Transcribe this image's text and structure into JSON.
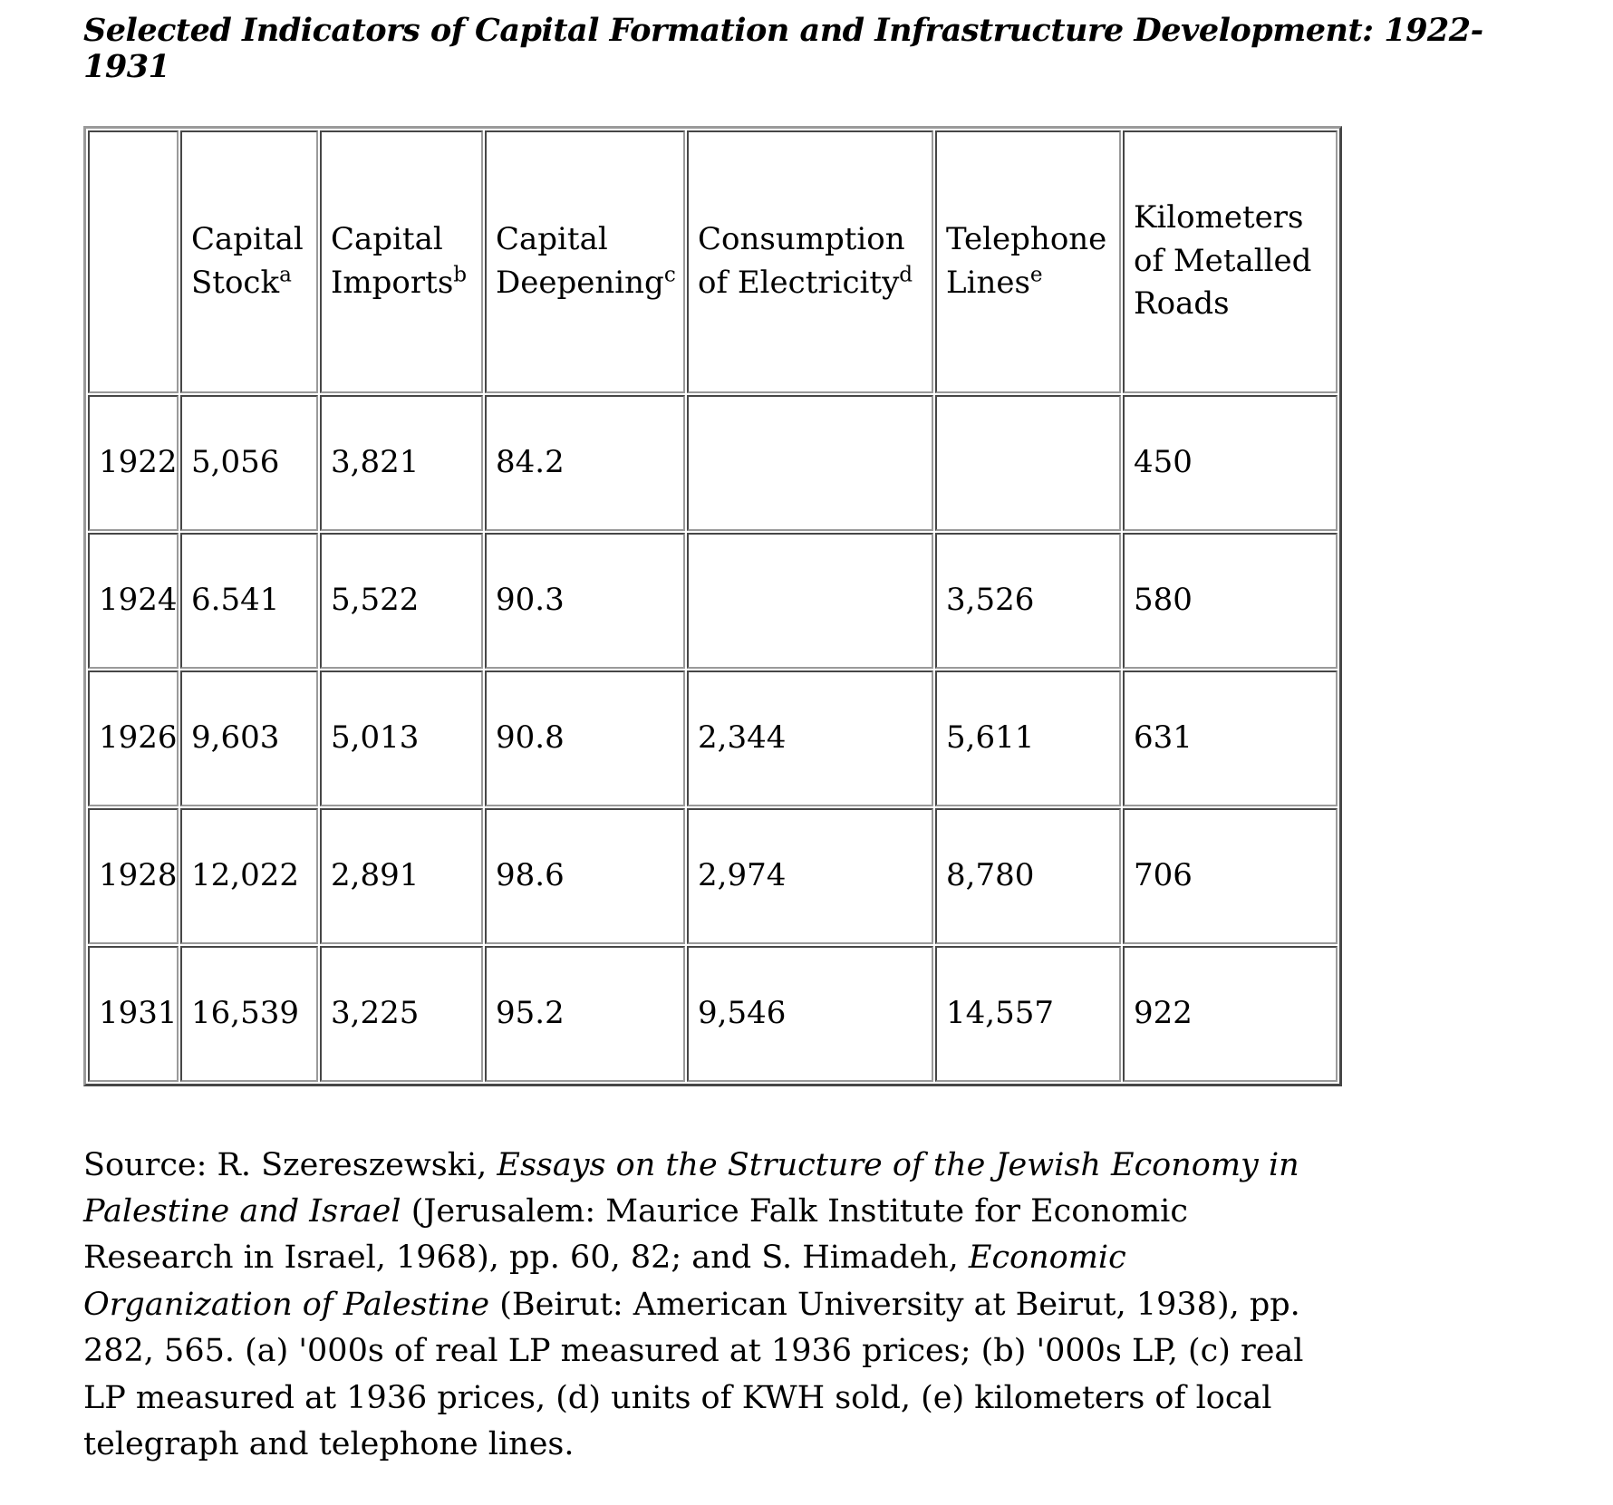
{
  "page": {
    "title": "Selected Indicators of Capital Formation and Infrastructure Development: 1922-1931"
  },
  "table": {
    "columns": [
      {
        "text": "",
        "sup": ""
      },
      {
        "text": "Capital Stock",
        "sup": "a"
      },
      {
        "text": "Capital Imports",
        "sup": "b"
      },
      {
        "text": "Capital Deepening",
        "sup": "c"
      },
      {
        "text": "Consumption of Electricity",
        "sup": "d"
      },
      {
        "text": "Telephone Lines",
        "sup": "e"
      },
      {
        "text": "Kilometers of Metalled Roads",
        "sup": ""
      }
    ],
    "rows": [
      {
        "year": "1922",
        "values": [
          "5,056",
          "3,821",
          "84.2",
          "",
          "",
          "450"
        ]
      },
      {
        "year": "1924",
        "values": [
          "6.541",
          "5,522",
          "90.3",
          "",
          "3,526",
          "580"
        ]
      },
      {
        "year": "1926",
        "values": [
          "9,603",
          "5,013",
          "90.8",
          "2,344",
          "5,611",
          "631"
        ]
      },
      {
        "year": "1928",
        "values": [
          "12,022",
          "2,891",
          "98.6",
          "2,974",
          "8,780",
          "706"
        ]
      },
      {
        "year": "1931",
        "values": [
          "16,539",
          "3,225",
          "95.2",
          "9,546",
          "14,557",
          "922"
        ]
      }
    ]
  },
  "source": {
    "segments": [
      {
        "text": "Source: R. Szereszewski, ",
        "italic": false
      },
      {
        "text": "Essays on the Structure of the Jewish Economy in Palestine and Israel",
        "italic": true
      },
      {
        "text": " (Jerusalem: Maurice Falk Institute for Economic Research in Israel, 1968), pp. 60, 82; and S. Himadeh, ",
        "italic": false
      },
      {
        "text": "Economic Organization of Palestine",
        "italic": true
      },
      {
        "text": " (Beirut: American University at Beirut, 1938), pp. 282, 565. (a) '000s of real LP measured at 1936 prices; (b) '000s LP, (c) real LP measured at 1936 prices, (d) units of KWH sold, (e) kilometers of local telegraph and telephone lines.",
        "italic": false
      }
    ]
  },
  "colors": {
    "text": "#000000",
    "background": "#ffffff",
    "table_border": "#9a9a9a"
  }
}
